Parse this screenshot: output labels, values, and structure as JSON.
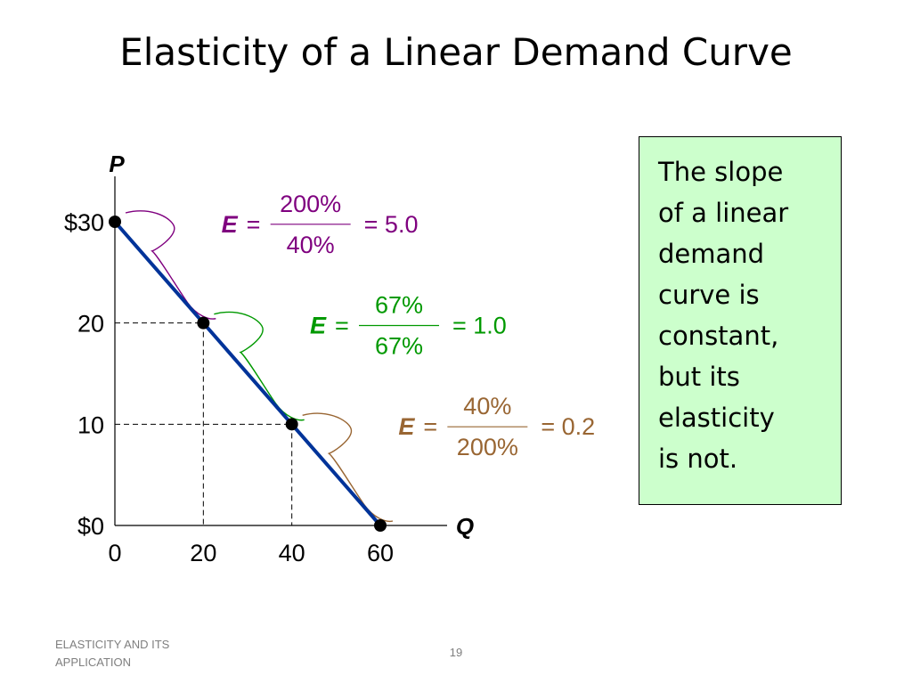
{
  "slide": {
    "title": "Elasticity of a Linear Demand Curve",
    "note_lines": [
      "The slope",
      "of a linear",
      "demand",
      "curve is",
      "constant,",
      "but its",
      "elasticity",
      "is not."
    ],
    "footer_line1": "ELASTICITY AND ITS",
    "footer_line2": "APPLICATION",
    "page_number": "19"
  },
  "colors": {
    "curve": "#003399",
    "purple": "#7f007f",
    "green": "#009900",
    "brown": "#996633",
    "note_bg": "#ccffcc"
  },
  "chart_data": {
    "type": "line",
    "ylabel": "P",
    "xlabel": "Q",
    "y_ticks": [
      {
        "value": 0,
        "label": "$0"
      },
      {
        "value": 10,
        "label": "10"
      },
      {
        "value": 20,
        "label": "20"
      },
      {
        "value": 30,
        "label": "$30"
      }
    ],
    "x_ticks": [
      {
        "value": 0,
        "label": "0"
      },
      {
        "value": 20,
        "label": "20"
      },
      {
        "value": 40,
        "label": "40"
      },
      {
        "value": 60,
        "label": "60"
      }
    ],
    "xlim": [
      0,
      60
    ],
    "ylim": [
      0,
      30
    ],
    "points": [
      {
        "q": 0,
        "p": 30
      },
      {
        "q": 20,
        "p": 20
      },
      {
        "q": 40,
        "p": 10
      },
      {
        "q": 60,
        "p": 0
      }
    ],
    "elasticities": [
      {
        "E": "E",
        "eq": "=",
        "numerator": "200%",
        "denominator": "40%",
        "result": "= 5.0",
        "color": "#7f007f"
      },
      {
        "E": "E",
        "eq": "=",
        "numerator": "67%",
        "denominator": "67%",
        "result": "= 1.0",
        "color": "#009900"
      },
      {
        "E": "E",
        "eq": "=",
        "numerator": "40%",
        "denominator": "200%",
        "result": "= 0.2",
        "color": "#996633"
      }
    ]
  }
}
